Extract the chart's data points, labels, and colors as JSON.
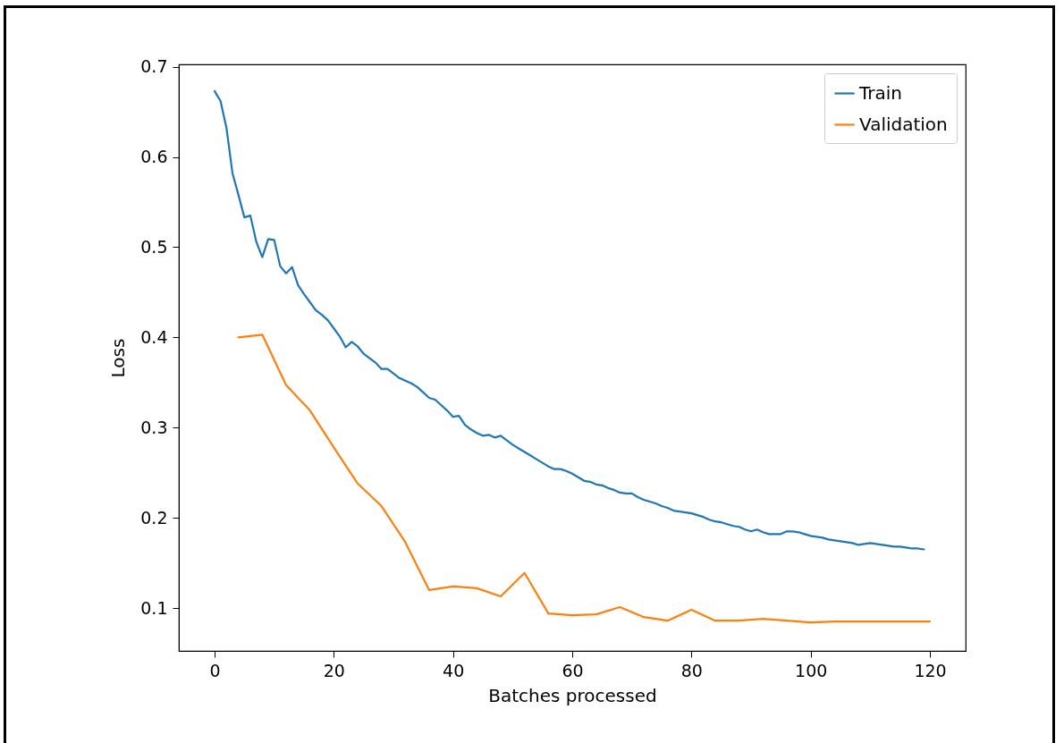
{
  "chart_data": {
    "type": "line",
    "xlabel": "Batches processed",
    "ylabel": "Loss",
    "xlim": [
      -6,
      126
    ],
    "ylim": [
      0.0525,
      0.7026
    ],
    "xticks": [
      0,
      20,
      40,
      60,
      80,
      100,
      120
    ],
    "yticks": [
      0.1,
      0.2,
      0.3,
      0.4,
      0.5,
      0.6,
      0.7
    ],
    "grid": false,
    "legend": "top right",
    "line_style": "solid",
    "series": [
      {
        "name": "Train",
        "color": "#1f77b4",
        "x": [
          0,
          1,
          2,
          3,
          4,
          5,
          6,
          7,
          8,
          9,
          10,
          11,
          12,
          13,
          14,
          15,
          16,
          17,
          18,
          19,
          20,
          21,
          22,
          23,
          24,
          25,
          26,
          27,
          28,
          29,
          30,
          31,
          32,
          33,
          34,
          35,
          36,
          37,
          38,
          39,
          40,
          41,
          42,
          43,
          44,
          45,
          46,
          47,
          48,
          49,
          50,
          51,
          52,
          53,
          54,
          55,
          56,
          57,
          58,
          59,
          60,
          61,
          62,
          63,
          64,
          65,
          66,
          67,
          68,
          69,
          70,
          71,
          72,
          73,
          74,
          75,
          76,
          77,
          78,
          79,
          80,
          81,
          82,
          83,
          84,
          85,
          86,
          87,
          88,
          89,
          90,
          91,
          92,
          93,
          94,
          95,
          96,
          97,
          98,
          99,
          100,
          101,
          102,
          103,
          104,
          105,
          106,
          107,
          108,
          109,
          110,
          111,
          112,
          113,
          114,
          115,
          116,
          117,
          118,
          119
        ],
        "values": [
          0.673,
          0.662,
          0.632,
          0.582,
          0.558,
          0.533,
          0.535,
          0.506,
          0.489,
          0.509,
          0.508,
          0.479,
          0.471,
          0.478,
          0.458,
          0.448,
          0.439,
          0.43,
          0.425,
          0.419,
          0.41,
          0.401,
          0.389,
          0.395,
          0.39,
          0.382,
          0.377,
          0.372,
          0.365,
          0.365,
          0.36,
          0.355,
          0.352,
          0.349,
          0.345,
          0.339,
          0.333,
          0.331,
          0.325,
          0.319,
          0.312,
          0.313,
          0.303,
          0.298,
          0.294,
          0.291,
          0.292,
          0.289,
          0.291,
          0.286,
          0.281,
          0.277,
          0.273,
          0.269,
          0.265,
          0.261,
          0.257,
          0.254,
          0.254,
          0.252,
          0.249,
          0.245,
          0.241,
          0.24,
          0.237,
          0.236,
          0.233,
          0.231,
          0.228,
          0.227,
          0.227,
          0.223,
          0.22,
          0.218,
          0.216,
          0.213,
          0.211,
          0.208,
          0.207,
          0.206,
          0.205,
          0.203,
          0.201,
          0.198,
          0.196,
          0.195,
          0.193,
          0.191,
          0.19,
          0.187,
          0.185,
          0.187,
          0.184,
          0.182,
          0.182,
          0.182,
          0.185,
          0.185,
          0.184,
          0.182,
          0.18,
          0.179,
          0.178,
          0.176,
          0.175,
          0.174,
          0.173,
          0.172,
          0.17,
          0.171,
          0.172,
          0.171,
          0.17,
          0.169,
          0.168,
          0.168,
          0.167,
          0.166,
          0.166,
          0.165
        ]
      },
      {
        "name": "Validation",
        "color": "#ff7f0e",
        "x": [
          4,
          8,
          12,
          16,
          20,
          24,
          28,
          32,
          36,
          40,
          44,
          48,
          52,
          56,
          60,
          64,
          68,
          72,
          76,
          80,
          84,
          88,
          92,
          96,
          100,
          104,
          108,
          112,
          116,
          120
        ],
        "values": [
          0.4,
          0.403,
          0.347,
          0.319,
          0.278,
          0.238,
          0.213,
          0.173,
          0.12,
          0.124,
          0.122,
          0.113,
          0.139,
          0.094,
          0.092,
          0.093,
          0.101,
          0.09,
          0.086,
          0.098,
          0.086,
          0.086,
          0.088,
          0.086,
          0.084,
          0.085,
          0.085,
          0.085,
          0.085,
          0.085
        ]
      }
    ]
  }
}
